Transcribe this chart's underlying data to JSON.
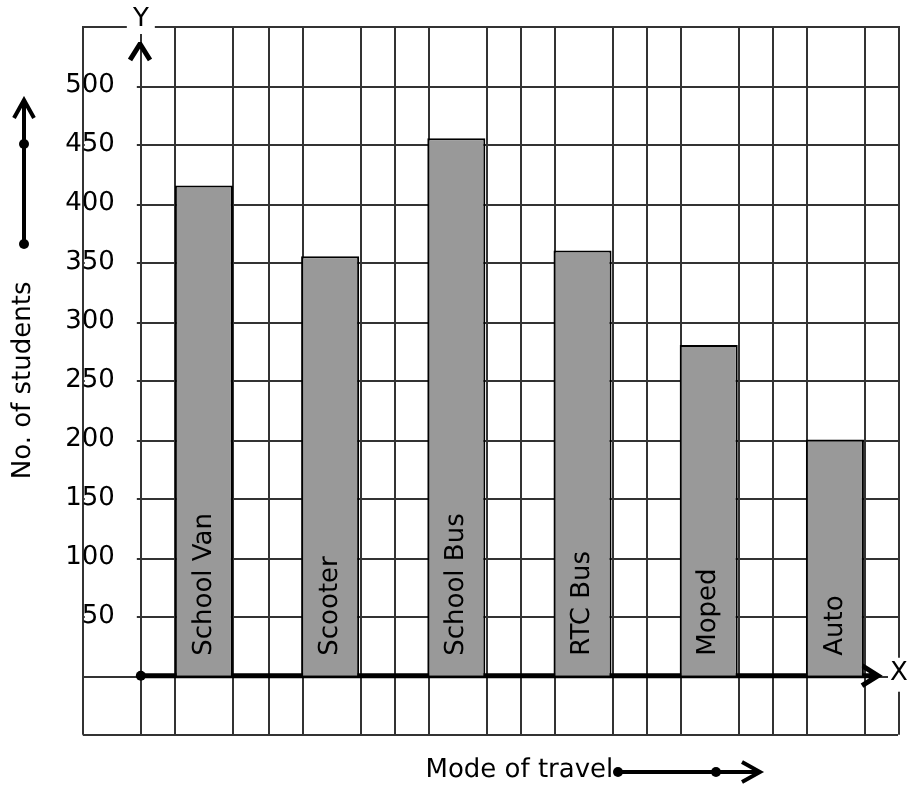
{
  "chart_data": {
    "type": "bar",
    "xlabel": "Mode of travel",
    "ylabel": "No. of students",
    "categories": [
      "School Van",
      "Scooter",
      "School Bus",
      "RTC Bus",
      "Moped",
      "Auto"
    ],
    "values": [
      415,
      355,
      455,
      360,
      280,
      200
    ],
    "color": "#999999",
    "ylim": [
      -50,
      550
    ],
    "yticks": [
      {
        "value": -50,
        "label": null
      },
      {
        "value": 0,
        "label": null
      },
      50,
      100,
      150,
      200,
      250,
      300,
      350,
      400,
      450,
      500,
      {
        "value": 550,
        "label": null
      }
    ],
    "grid": true,
    "annotations": [
      "X",
      "Y"
    ]
  }
}
